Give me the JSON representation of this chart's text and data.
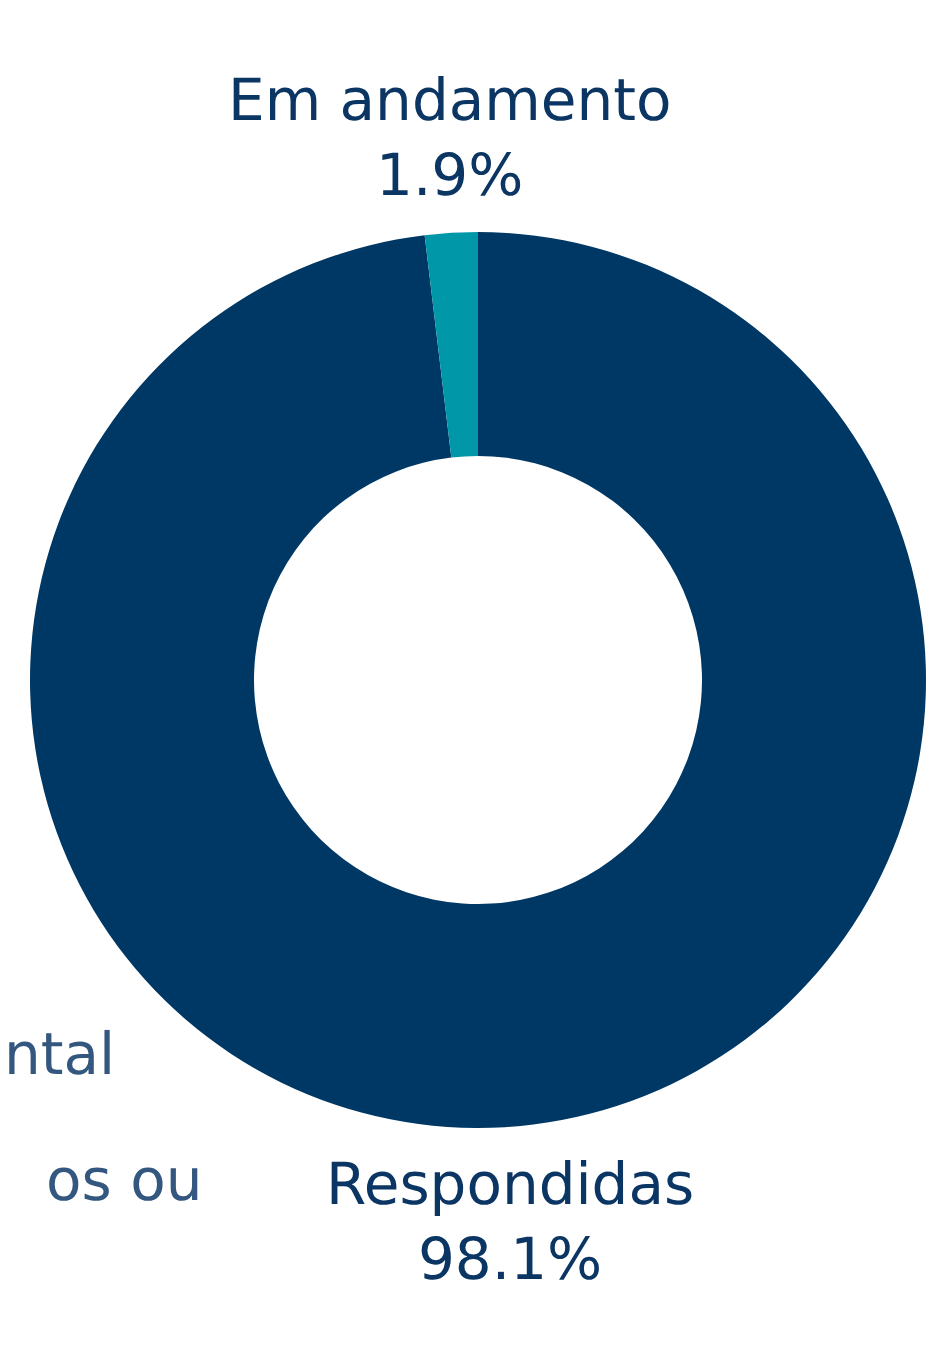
{
  "chart_data": {
    "type": "donut",
    "categories": [
      "Respondidas",
      "Em andamento"
    ],
    "values": [
      98.1,
      1.9
    ],
    "colors": [
      "#003865",
      "#0097a9"
    ],
    "value_labels": [
      "98.1%",
      "1.9%"
    ],
    "annotations": [
      "ntal",
      "os ou"
    ]
  }
}
